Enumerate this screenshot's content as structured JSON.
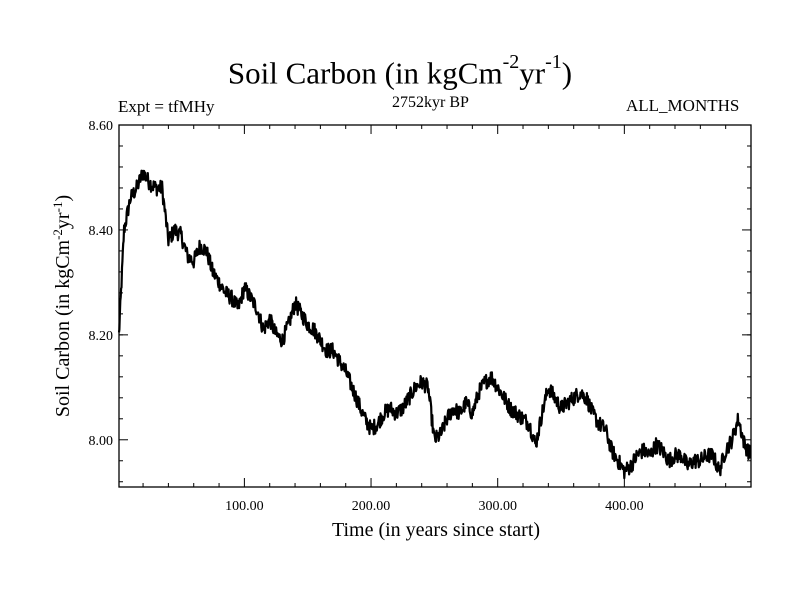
{
  "header": {
    "title_main": "Soil Carbon (in kgCm",
    "title_sup1": "-2",
    "title_mid": "yr",
    "title_sup2": "-1",
    "title_end": ")",
    "expt": "Expt = tfMHy",
    "subtitle": "2752kyr BP",
    "months": "ALL_MONTHS"
  },
  "chart_data": {
    "type": "line",
    "title": "Soil Carbon (in kgCm-2yr-1)",
    "xlabel": "Time (in years since start)",
    "ylabel_main": "Soil Carbon (in kgCm",
    "ylabel_sup1": "-2",
    "ylabel_mid": "yr",
    "ylabel_sup2": "-1",
    "ylabel_end": ")",
    "xlim": [
      1,
      500
    ],
    "ylim": [
      7.91,
      8.6
    ],
    "xticks": [
      100,
      200,
      300,
      400
    ],
    "xtick_labels": [
      "100.00",
      "200.00",
      "300.00",
      "400.00"
    ],
    "yticks": [
      8.0,
      8.2,
      8.4,
      8.6
    ],
    "ytick_labels": [
      "8.00",
      "8.20",
      "8.40",
      "8.60"
    ],
    "grid": false,
    "line_color": "#000000",
    "series": [
      {
        "x": [
          1,
          5,
          10,
          15,
          20,
          25,
          30,
          35,
          40,
          45,
          50,
          55,
          60,
          65,
          70,
          75,
          80,
          85,
          90,
          95,
          100,
          105,
          110,
          115,
          120,
          125,
          130,
          135,
          140,
          145,
          150,
          155,
          160,
          165,
          170,
          175,
          180,
          185,
          190,
          195,
          200,
          205,
          210,
          215,
          220,
          225,
          230,
          235,
          240,
          245,
          250,
          255,
          260,
          265,
          270,
          275,
          280,
          285,
          290,
          295,
          300,
          305,
          310,
          315,
          320,
          325,
          330,
          335,
          340,
          345,
          350,
          355,
          360,
          365,
          370,
          375,
          380,
          385,
          390,
          395,
          400,
          405,
          410,
          415,
          420,
          425,
          430,
          435,
          440,
          445,
          450,
          455,
          460,
          465,
          470,
          475,
          480,
          485,
          490,
          495,
          500
        ],
        "values": [
          8.2,
          8.4,
          8.46,
          8.48,
          8.51,
          8.49,
          8.48,
          8.48,
          8.38,
          8.4,
          8.39,
          8.35,
          8.34,
          8.37,
          8.36,
          8.32,
          8.3,
          8.28,
          8.27,
          8.25,
          8.29,
          8.27,
          8.25,
          8.21,
          8.23,
          8.2,
          8.19,
          8.22,
          8.26,
          8.24,
          8.22,
          8.21,
          8.19,
          8.17,
          8.17,
          8.15,
          8.13,
          8.1,
          8.07,
          8.04,
          8.02,
          8.03,
          8.05,
          8.06,
          8.05,
          8.06,
          8.08,
          8.1,
          8.11,
          8.1,
          8.0,
          8.01,
          8.04,
          8.06,
          8.05,
          8.07,
          8.05,
          8.09,
          8.11,
          8.12,
          8.1,
          8.08,
          8.06,
          8.05,
          8.04,
          8.03,
          7.99,
          8.05,
          8.1,
          8.08,
          8.06,
          8.07,
          8.08,
          8.09,
          8.08,
          8.05,
          8.03,
          8.02,
          7.98,
          7.96,
          7.94,
          7.95,
          7.97,
          7.98,
          7.97,
          7.99,
          7.98,
          7.96,
          7.97,
          7.97,
          7.95,
          7.96,
          7.96,
          7.97,
          7.97,
          7.94,
          7.98,
          8.0,
          8.04,
          7.99,
          7.97
        ]
      }
    ]
  }
}
